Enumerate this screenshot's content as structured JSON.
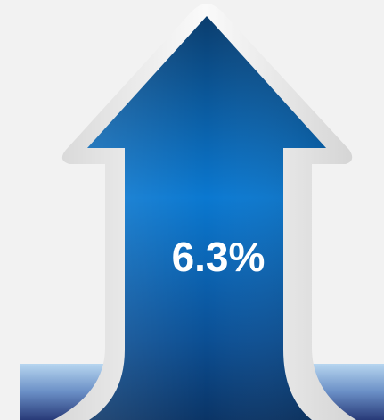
{
  "label": "6.3%"
}
